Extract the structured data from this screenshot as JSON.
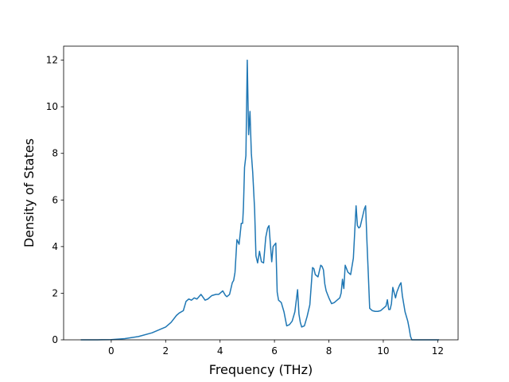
{
  "chart_data": {
    "type": "line",
    "title": "",
    "xlabel": "Frequency (THz)",
    "ylabel": "Density of States",
    "xlim": [
      -1.75,
      12.75
    ],
    "ylim": [
      0,
      12.6
    ],
    "xticks": [
      0,
      2,
      4,
      6,
      8,
      10,
      12
    ],
    "yticks": [
      0,
      2,
      4,
      6,
      8,
      10,
      12
    ],
    "grid": false,
    "legend": "none",
    "series": [
      {
        "name": "",
        "color": "#1f77b4",
        "x": [
          -1.12,
          -0.5,
          0.0,
          0.5,
          1.0,
          1.5,
          1.8,
          2.0,
          2.2,
          2.4,
          2.5,
          2.65,
          2.75,
          2.85,
          2.95,
          3.05,
          3.15,
          3.3,
          3.45,
          3.55,
          3.7,
          3.85,
          3.95,
          4.1,
          4.2,
          4.25,
          4.35,
          4.45,
          4.5,
          4.55,
          4.62,
          4.7,
          4.78,
          4.83,
          4.86,
          4.9,
          4.95,
          5.0,
          5.05,
          5.1,
          5.15,
          5.2,
          5.27,
          5.32,
          5.38,
          5.45,
          5.52,
          5.6,
          5.68,
          5.75,
          5.8,
          5.85,
          5.9,
          5.95,
          6.05,
          6.1,
          6.15,
          6.25,
          6.35,
          6.45,
          6.55,
          6.65,
          6.75,
          6.85,
          6.9,
          6.95,
          7.0,
          7.1,
          7.2,
          7.3,
          7.4,
          7.45,
          7.5,
          7.6,
          7.7,
          7.75,
          7.8,
          7.85,
          7.9,
          8.0,
          8.1,
          8.2,
          8.3,
          8.4,
          8.45,
          8.5,
          8.55,
          8.6,
          8.7,
          8.8,
          8.9,
          9.0,
          9.05,
          9.1,
          9.15,
          9.2,
          9.3,
          9.35,
          9.4,
          9.45,
          9.5,
          9.6,
          9.7,
          9.8,
          9.9,
          10.0,
          10.1,
          10.15,
          10.2,
          10.25,
          10.3,
          10.35,
          10.45,
          10.5,
          10.55,
          10.6,
          10.65,
          10.7,
          10.8,
          10.9,
          10.95,
          11.0,
          11.05,
          11.2,
          11.6,
          12.05
        ],
        "y": [
          0.0,
          0.0,
          0.01,
          0.05,
          0.14,
          0.3,
          0.45,
          0.55,
          0.75,
          1.05,
          1.15,
          1.25,
          1.65,
          1.75,
          1.7,
          1.8,
          1.75,
          1.95,
          1.7,
          1.75,
          1.9,
          1.95,
          1.95,
          2.1,
          1.9,
          1.85,
          1.95,
          2.45,
          2.55,
          2.9,
          4.3,
          4.1,
          5.0,
          5.0,
          5.7,
          7.4,
          7.9,
          12.0,
          8.8,
          9.8,
          8.0,
          7.2,
          5.6,
          3.6,
          3.3,
          3.8,
          3.35,
          3.3,
          4.4,
          4.8,
          4.9,
          4.1,
          3.35,
          4.0,
          4.15,
          2.05,
          1.7,
          1.6,
          1.2,
          0.6,
          0.65,
          0.8,
          1.2,
          2.15,
          1.1,
          0.75,
          0.55,
          0.6,
          1.0,
          1.5,
          3.1,
          3.05,
          2.8,
          2.7,
          3.2,
          3.15,
          3.0,
          2.4,
          2.1,
          1.8,
          1.55,
          1.6,
          1.7,
          1.8,
          2.0,
          2.6,
          2.2,
          3.2,
          2.9,
          2.8,
          3.5,
          5.75,
          4.9,
          4.8,
          4.85,
          5.1,
          5.6,
          5.75,
          4.2,
          2.8,
          1.35,
          1.25,
          1.22,
          1.22,
          1.25,
          1.35,
          1.45,
          1.72,
          1.3,
          1.3,
          1.55,
          2.25,
          1.8,
          2.05,
          2.2,
          2.35,
          2.45,
          1.9,
          1.2,
          0.8,
          0.5,
          0.15,
          0.0,
          0.0,
          0.0,
          0.0
        ]
      }
    ]
  }
}
